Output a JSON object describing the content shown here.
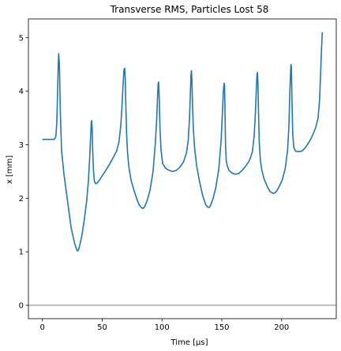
{
  "chart_data": {
    "type": "line",
    "title": "Transverse RMS, Particles Lost 58",
    "xlabel": "Time [μs]",
    "ylabel": "x [mm]",
    "xlim": [
      -11.7,
      245.7
    ],
    "ylim": [
      -0.25,
      5.35
    ],
    "xticks": [
      0,
      50,
      100,
      150,
      200
    ],
    "yticks": [
      0,
      1,
      2,
      3,
      4,
      5
    ],
    "reference_line": {
      "y": 0,
      "color": "#808080"
    },
    "grid": false,
    "legend": "none",
    "series": [
      {
        "color": "#1f77b4",
        "x": [
          0,
          4,
          8,
          10,
          11.2,
          12,
          12.6,
          13.2,
          13.6,
          14.2,
          15,
          16,
          18,
          21,
          24,
          27,
          29,
          30,
          31,
          33,
          35,
          37,
          38.4,
          39.4,
          40.2,
          40.8,
          41.2,
          41.6,
          42,
          42.6,
          43.4,
          44.5,
          46,
          48,
          50,
          53,
          56,
          59,
          62,
          64,
          65.5,
          66.5,
          67.4,
          68.2,
          68.8,
          69.3,
          69.8,
          70.4,
          71.2,
          72.2,
          74,
          76.5,
          79,
          81,
          83,
          84.2,
          85.5,
          87.5,
          90,
          92.5,
          94.5,
          95.6,
          96.3,
          96.8,
          97.2,
          97.7,
          98.3,
          99.2,
          100.5,
          103,
          106,
          109,
          112,
          115,
          118,
          120.5,
          122,
          123,
          123.7,
          124.2,
          124.6,
          125,
          125.5,
          126.2,
          127.2,
          129,
          131.5,
          134,
          136.5,
          138.5,
          139.5,
          140.5,
          142.5,
          145,
          147.5,
          149.5,
          150.5,
          151.3,
          151.9,
          152.3,
          152.7,
          153.1,
          153.7,
          154.6,
          156,
          158.5,
          161,
          164,
          167,
          170,
          173,
          175.5,
          177,
          178,
          178.8,
          179.4,
          179.8,
          180.2,
          180.7,
          181.3,
          182.2,
          183.5,
          185.5,
          188,
          190.5,
          193,
          194.5,
          196,
          198,
          200.5,
          203,
          205,
          206,
          206.8,
          207.4,
          207.8,
          208.2,
          208.7,
          209.3,
          210.2,
          211.5,
          214,
          217,
          220,
          223,
          226,
          228.5,
          230.5,
          231.8,
          232.7,
          233.4,
          234
        ],
        "y": [
          3.1,
          3.1,
          3.1,
          3.1,
          3.15,
          3.4,
          3.9,
          4.45,
          4.7,
          4.5,
          3.6,
          2.9,
          2.45,
          1.95,
          1.45,
          1.15,
          1.02,
          1.02,
          1.1,
          1.3,
          1.6,
          1.95,
          2.3,
          2.7,
          3.1,
          3.4,
          3.45,
          3.3,
          2.95,
          2.55,
          2.32,
          2.27,
          2.29,
          2.35,
          2.42,
          2.52,
          2.63,
          2.75,
          2.88,
          3.05,
          3.35,
          3.7,
          4.1,
          4.4,
          4.43,
          4.2,
          3.7,
          3.2,
          2.85,
          2.6,
          2.35,
          2.15,
          1.98,
          1.87,
          1.82,
          1.81,
          1.84,
          1.95,
          2.15,
          2.5,
          3.05,
          3.5,
          3.9,
          4.15,
          4.17,
          3.85,
          3.3,
          2.9,
          2.65,
          2.56,
          2.52,
          2.5,
          2.52,
          2.58,
          2.68,
          2.85,
          3.1,
          3.5,
          3.95,
          4.3,
          4.38,
          4.2,
          3.75,
          3.3,
          2.95,
          2.6,
          2.3,
          2.05,
          1.88,
          1.83,
          1.83,
          1.86,
          1.98,
          2.2,
          2.55,
          3.1,
          3.6,
          4.0,
          4.15,
          4.1,
          3.6,
          3.0,
          2.7,
          2.6,
          2.52,
          2.47,
          2.45,
          2.46,
          2.52,
          2.6,
          2.7,
          2.86,
          3.15,
          3.55,
          4.0,
          4.3,
          4.35,
          4.15,
          3.6,
          3.05,
          2.72,
          2.52,
          2.35,
          2.22,
          2.12,
          2.09,
          2.1,
          2.14,
          2.22,
          2.34,
          2.55,
          2.9,
          3.3,
          3.9,
          4.3,
          4.5,
          4.45,
          3.8,
          3.2,
          2.95,
          2.88,
          2.87,
          2.88,
          2.95,
          3.05,
          3.18,
          3.32,
          3.5,
          3.85,
          4.4,
          4.8,
          5.1
        ]
      }
    ]
  }
}
